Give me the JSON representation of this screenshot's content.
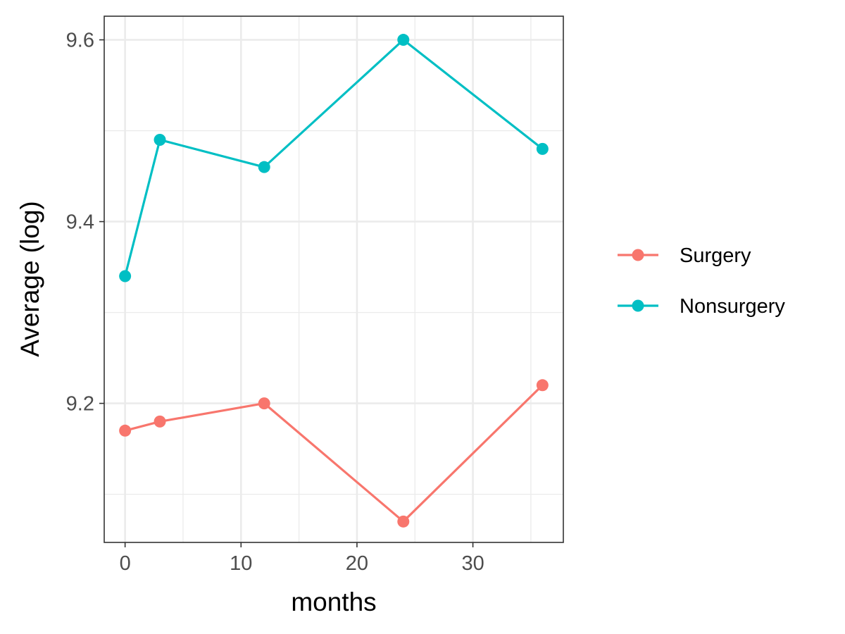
{
  "chart_data": {
    "type": "line",
    "title": "",
    "xlabel": "months",
    "ylabel": "Average (log)",
    "x": [
      0,
      3,
      12,
      24,
      36
    ],
    "xlim": [
      -1.8,
      37.8
    ],
    "ylim": [
      9.047,
      9.626
    ],
    "x_major_ticks": [
      0,
      10,
      20,
      30
    ],
    "x_tick_labels": [
      "0",
      "10",
      "20",
      "30"
    ],
    "x_minor_ticks": [
      5,
      15,
      25,
      35
    ],
    "y_major_ticks": [
      9.2,
      9.4,
      9.6
    ],
    "y_tick_labels": [
      "9.2",
      "9.4",
      "9.6"
    ],
    "y_minor_ticks": [
      9.1,
      9.3,
      9.5
    ],
    "grid": true,
    "legend_position": "right",
    "series": [
      {
        "name": "Surgery",
        "color": "#F8766D",
        "values": [
          9.17,
          9.18,
          9.2,
          9.07,
          9.22
        ]
      },
      {
        "name": "Nonsurgery",
        "color": "#00BFC4",
        "values": [
          9.34,
          9.49,
          9.46,
          9.6,
          9.48
        ]
      }
    ]
  }
}
